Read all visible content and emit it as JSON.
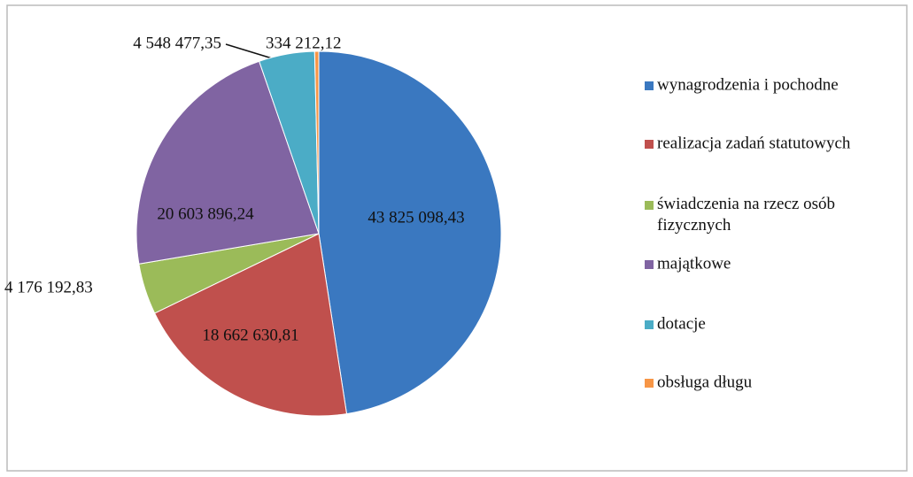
{
  "chart_data": {
    "type": "pie",
    "categories": [
      "wynagrodzenia i pochodne",
      "realizacja zadań statutowych",
      "świadczenia na rzecz osób fizycznych",
      "majątkowe",
      "dotacje",
      "obsługa długu"
    ],
    "values": [
      43825098.43,
      18662630.81,
      4176192.83,
      20603896.24,
      4548477.35,
      334212.12
    ],
    "value_labels": [
      "43 825 098,43",
      "18 662 630,81",
      "4 176 192,83",
      "20 603 896,24",
      "4 548 477,35",
      "334 212,12"
    ],
    "colors": [
      "#3a78c0",
      "#c0504d",
      "#9bbb59",
      "#8064a2",
      "#4bacc6",
      "#f79646"
    ],
    "legend": "right"
  }
}
